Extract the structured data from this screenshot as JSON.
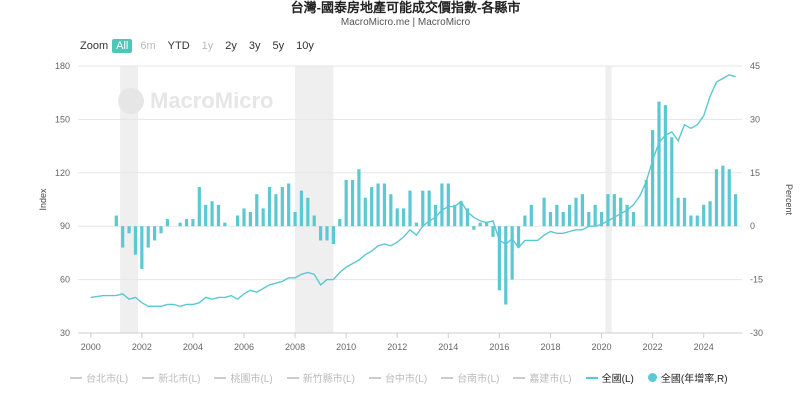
{
  "header": {
    "title": "台灣-國泰房地產可能成交價指數-各縣市",
    "subtitle": "MacroMicro.me | MacroMicro"
  },
  "zoom": {
    "label": "Zoom",
    "buttons": [
      "All",
      "6m",
      "YTD",
      "1y",
      "2y",
      "3y",
      "5y",
      "10y"
    ],
    "active": "All",
    "disabled": [
      "6m",
      "1y"
    ]
  },
  "watermark": "MacroMicro",
  "colors": {
    "series": "#5bc8d2",
    "recession": "#efefef",
    "grid": "#e6e6e6",
    "active_button": "#4dc7b7"
  },
  "legend": [
    {
      "label": "台北市(L)",
      "enabled": false,
      "marker": "line"
    },
    {
      "label": "新北市(L)",
      "enabled": false,
      "marker": "line"
    },
    {
      "label": "桃園市(L)",
      "enabled": false,
      "marker": "line"
    },
    {
      "label": "新竹縣市(L)",
      "enabled": false,
      "marker": "line"
    },
    {
      "label": "台中市(L)",
      "enabled": false,
      "marker": "line"
    },
    {
      "label": "台南市(L)",
      "enabled": false,
      "marker": "line"
    },
    {
      "label": "嘉建市(L)",
      "enabled": false,
      "marker": "line"
    },
    {
      "label": "全國(L)",
      "enabled": true,
      "marker": "line"
    },
    {
      "label": "全國(年增率,R)",
      "enabled": true,
      "marker": "dot"
    }
  ],
  "chart_data": {
    "type": "line+bar",
    "xlabel": "",
    "x_ticks": [
      "2000",
      "2002",
      "2004",
      "2006",
      "2008",
      "2010",
      "2012",
      "2014",
      "2016",
      "2018",
      "2020",
      "2022",
      "2024"
    ],
    "left_axis": {
      "label": "Index",
      "range": [
        30,
        180
      ],
      "ticks": [
        "30",
        "60",
        "90",
        "120",
        "150",
        "180"
      ]
    },
    "right_axis": {
      "label": "Percent",
      "range": [
        -30,
        45
      ],
      "ticks": [
        "-30",
        "-15",
        "0",
        "15",
        "30",
        "45"
      ]
    },
    "shaded_periods": [
      [
        2001.15,
        2001.85
      ],
      [
        2008.0,
        2009.5
      ],
      [
        2020.15,
        2020.4
      ]
    ],
    "series": [
      {
        "name": "全國(L)",
        "type": "line",
        "axis": "left",
        "points": [
          [
            2000.0,
            50
          ],
          [
            2000.5,
            51
          ],
          [
            2001.0,
            51
          ],
          [
            2001.25,
            52
          ],
          [
            2001.5,
            49
          ],
          [
            2001.75,
            50
          ],
          [
            2002.0,
            47
          ],
          [
            2002.25,
            45
          ],
          [
            2002.5,
            45
          ],
          [
            2002.75,
            45
          ],
          [
            2003.0,
            46
          ],
          [
            2003.25,
            46
          ],
          [
            2003.5,
            45
          ],
          [
            2003.75,
            46
          ],
          [
            2004.0,
            46
          ],
          [
            2004.25,
            47
          ],
          [
            2004.5,
            50
          ],
          [
            2004.75,
            49
          ],
          [
            2005.0,
            50
          ],
          [
            2005.25,
            50
          ],
          [
            2005.5,
            51
          ],
          [
            2005.75,
            49
          ],
          [
            2006.0,
            52
          ],
          [
            2006.25,
            54
          ],
          [
            2006.5,
            53
          ],
          [
            2006.75,
            55
          ],
          [
            2007.0,
            57
          ],
          [
            2007.25,
            58
          ],
          [
            2007.5,
            59
          ],
          [
            2007.75,
            61
          ],
          [
            2008.0,
            61
          ],
          [
            2008.25,
            63
          ],
          [
            2008.5,
            64
          ],
          [
            2008.75,
            63
          ],
          [
            2009.0,
            57
          ],
          [
            2009.25,
            60
          ],
          [
            2009.5,
            60
          ],
          [
            2009.75,
            64
          ],
          [
            2010.0,
            67
          ],
          [
            2010.25,
            69
          ],
          [
            2010.5,
            71
          ],
          [
            2010.75,
            74
          ],
          [
            2011.0,
            76
          ],
          [
            2011.25,
            79
          ],
          [
            2011.5,
            80
          ],
          [
            2011.75,
            79
          ],
          [
            2012.0,
            81
          ],
          [
            2012.25,
            84
          ],
          [
            2012.5,
            88
          ],
          [
            2012.75,
            85
          ],
          [
            2013.0,
            90
          ],
          [
            2013.25,
            93
          ],
          [
            2013.5,
            95
          ],
          [
            2013.75,
            99
          ],
          [
            2014.0,
            101
          ],
          [
            2014.25,
            101
          ],
          [
            2014.5,
            104
          ],
          [
            2014.75,
            98
          ],
          [
            2015.0,
            95
          ],
          [
            2015.25,
            93
          ],
          [
            2015.5,
            92
          ],
          [
            2015.75,
            93
          ],
          [
            2016.0,
            82
          ],
          [
            2016.25,
            80
          ],
          [
            2016.5,
            83
          ],
          [
            2016.75,
            78
          ],
          [
            2017.0,
            82
          ],
          [
            2017.25,
            82
          ],
          [
            2017.5,
            82
          ],
          [
            2017.75,
            85
          ],
          [
            2018.0,
            87
          ],
          [
            2018.25,
            86
          ],
          [
            2018.5,
            86
          ],
          [
            2018.75,
            87
          ],
          [
            2019.0,
            88
          ],
          [
            2019.25,
            88
          ],
          [
            2019.5,
            90
          ],
          [
            2019.75,
            90
          ],
          [
            2020.0,
            91
          ],
          [
            2020.25,
            93
          ],
          [
            2020.5,
            95
          ],
          [
            2020.75,
            97
          ],
          [
            2021.0,
            99
          ],
          [
            2021.25,
            102
          ],
          [
            2021.5,
            107
          ],
          [
            2021.75,
            115
          ],
          [
            2022.0,
            127
          ],
          [
            2022.25,
            137
          ],
          [
            2022.5,
            141
          ],
          [
            2022.75,
            143
          ],
          [
            2023.0,
            138
          ],
          [
            2023.25,
            147
          ],
          [
            2023.5,
            145
          ],
          [
            2023.75,
            147
          ],
          [
            2024.0,
            152
          ],
          [
            2024.25,
            163
          ],
          [
            2024.5,
            171
          ],
          [
            2024.75,
            173
          ],
          [
            2025.0,
            175
          ],
          [
            2025.25,
            174
          ]
        ]
      },
      {
        "name": "全國(年增率,R)",
        "type": "bar",
        "axis": "right",
        "points": [
          [
            2001.0,
            3
          ],
          [
            2001.25,
            -6
          ],
          [
            2001.5,
            -2
          ],
          [
            2001.75,
            -8
          ],
          [
            2002.0,
            -12
          ],
          [
            2002.25,
            -6
          ],
          [
            2002.5,
            -4
          ],
          [
            2002.75,
            -2
          ],
          [
            2003.0,
            2
          ],
          [
            2003.5,
            1
          ],
          [
            2003.75,
            2
          ],
          [
            2004.0,
            2
          ],
          [
            2004.25,
            11
          ],
          [
            2004.5,
            6
          ],
          [
            2004.75,
            7
          ],
          [
            2005.0,
            6
          ],
          [
            2005.25,
            1
          ],
          [
            2005.75,
            3
          ],
          [
            2006.0,
            5
          ],
          [
            2006.25,
            4
          ],
          [
            2006.5,
            9
          ],
          [
            2006.75,
            5
          ],
          [
            2007.0,
            11
          ],
          [
            2007.25,
            9
          ],
          [
            2007.5,
            11
          ],
          [
            2007.75,
            12
          ],
          [
            2008.0,
            4
          ],
          [
            2008.25,
            10
          ],
          [
            2008.5,
            8
          ],
          [
            2008.75,
            3
          ],
          [
            2009.0,
            -4
          ],
          [
            2009.25,
            -4
          ],
          [
            2009.5,
            -5
          ],
          [
            2009.75,
            2
          ],
          [
            2010.0,
            13
          ],
          [
            2010.25,
            13
          ],
          [
            2010.5,
            16
          ],
          [
            2010.75,
            8
          ],
          [
            2011.0,
            11
          ],
          [
            2011.25,
            12
          ],
          [
            2011.5,
            12
          ],
          [
            2011.75,
            9
          ],
          [
            2012.0,
            5
          ],
          [
            2012.25,
            5
          ],
          [
            2012.5,
            10
          ],
          [
            2012.75,
            1
          ],
          [
            2013.0,
            10
          ],
          [
            2013.25,
            10
          ],
          [
            2013.5,
            6
          ],
          [
            2013.75,
            12
          ],
          [
            2014.0,
            12
          ],
          [
            2014.25,
            6
          ],
          [
            2014.5,
            7
          ],
          [
            2014.75,
            5
          ],
          [
            2015.0,
            -1
          ],
          [
            2015.25,
            1
          ],
          [
            2015.5,
            1
          ],
          [
            2015.75,
            -3
          ],
          [
            2016.0,
            -18
          ],
          [
            2016.25,
            -22
          ],
          [
            2016.5,
            -15
          ],
          [
            2016.75,
            -6
          ],
          [
            2017.0,
            3
          ],
          [
            2017.25,
            6
          ],
          [
            2017.75,
            8
          ],
          [
            2018.0,
            4
          ],
          [
            2018.25,
            6
          ],
          [
            2018.5,
            4
          ],
          [
            2018.75,
            6
          ],
          [
            2019.0,
            8
          ],
          [
            2019.25,
            9
          ],
          [
            2019.5,
            4
          ],
          [
            2019.75,
            6
          ],
          [
            2020.0,
            4
          ],
          [
            2020.25,
            9
          ],
          [
            2020.5,
            9
          ],
          [
            2020.75,
            8
          ],
          [
            2021.0,
            6
          ],
          [
            2021.25,
            4
          ],
          [
            2021.75,
            13
          ],
          [
            2022.0,
            27
          ],
          [
            2022.25,
            35
          ],
          [
            2022.5,
            34
          ],
          [
            2022.75,
            25
          ],
          [
            2023.0,
            8
          ],
          [
            2023.25,
            8
          ],
          [
            2023.5,
            3
          ],
          [
            2023.75,
            3
          ],
          [
            2024.0,
            6
          ],
          [
            2024.25,
            7
          ],
          [
            2024.5,
            16
          ],
          [
            2024.75,
            17
          ],
          [
            2025.0,
            16
          ],
          [
            2025.25,
            9
          ]
        ]
      }
    ]
  }
}
